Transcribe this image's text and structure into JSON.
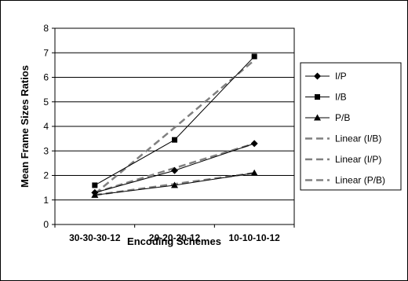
{
  "chart_data": {
    "type": "line",
    "title": "",
    "xlabel": "Encoding Schemes",
    "ylabel": "Mean Frame Sizes Ratios",
    "categories": [
      "30-30-30-12",
      "20-20-20-12",
      "10-10-10-12"
    ],
    "ylim": [
      0,
      8
    ],
    "yticks": [
      0,
      1,
      2,
      3,
      4,
      5,
      6,
      7,
      8
    ],
    "grid": "horizontal",
    "legend_position": "right",
    "series": [
      {
        "name": "I/P",
        "values": [
          1.3,
          2.2,
          3.3
        ],
        "color": "#000000",
        "marker": "diamond"
      },
      {
        "name": "I/B",
        "values": [
          1.6,
          3.45,
          6.85
        ],
        "color": "#000000",
        "marker": "square"
      },
      {
        "name": "P/B",
        "values": [
          1.2,
          1.6,
          2.1
        ],
        "color": "#000000",
        "marker": "triangle"
      }
    ],
    "trendlines": [
      {
        "name": "Linear (I/B)",
        "values": [
          1.25,
          3.95,
          6.7
        ],
        "color": "#808080",
        "dash": "dashed"
      },
      {
        "name": "Linear (I/P)",
        "values": [
          1.3,
          2.3,
          3.3
        ],
        "color": "#808080",
        "dash": "dashed"
      },
      {
        "name": "Linear (P/B)",
        "values": [
          1.2,
          1.65,
          2.1
        ],
        "color": "#808080",
        "dash": "dashed"
      }
    ]
  }
}
